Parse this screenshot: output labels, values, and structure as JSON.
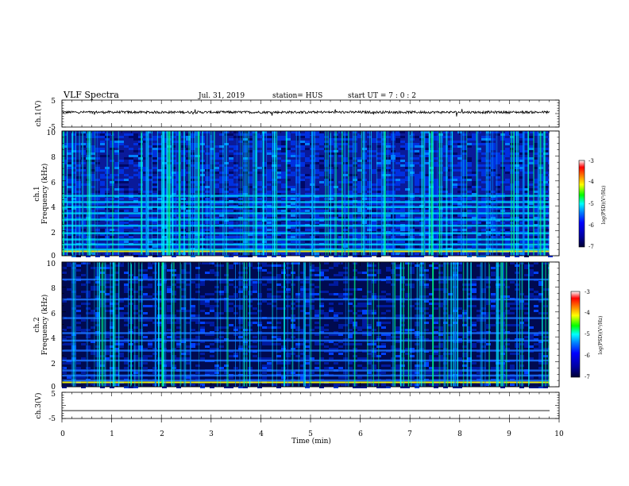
{
  "header": {
    "title": "VLF Spectra",
    "date": "Jul. 31, 2019",
    "station": "station= HUS",
    "start": "start  UT =   7 : 0  : 2"
  },
  "chart_data": [
    {
      "type": "line",
      "panel": "ch1-waveform",
      "ylabel": "ch.1(V)",
      "ylim": [
        -5,
        5
      ],
      "yticks": [
        "5",
        "-5"
      ],
      "xlim": [
        0,
        10
      ],
      "signal": "noisy waveform near 0 V, slightly above baseline"
    },
    {
      "type": "heatmap",
      "panel": "ch1-spectrogram",
      "ylabel_top": "ch.1",
      "ylabel": "Frequency (kHz)",
      "ylim": [
        0,
        10
      ],
      "yticks": [
        "0",
        "2",
        "4",
        "6",
        "8",
        "10"
      ],
      "xlim": [
        0,
        10
      ],
      "data_end_min": 9.8,
      "colorbar": {
        "title": "log(PSD)(V²/Hz)",
        "ticks": [
          "-3",
          "-4",
          "-5",
          "-6",
          "-7"
        ],
        "range": [
          -7,
          -3
        ]
      },
      "horizontal_bands_khz": [
        0.5,
        0.9,
        1.3,
        1.8,
        2.4,
        2.9,
        3.4,
        3.9,
        4.3,
        4.8
      ],
      "colors": [
        "#000033",
        "#00008b",
        "#0000ff",
        "#0080ff",
        "#00ffff",
        "#00ff00",
        "#ffff00",
        "#ff8000",
        "#ff0000",
        "#ffffff"
      ]
    },
    {
      "type": "heatmap",
      "panel": "ch2-spectrogram",
      "ylabel_top": "ch.2",
      "ylabel": "Frequency (kHz)",
      "ylim": [
        0,
        10
      ],
      "yticks": [
        "0",
        "2",
        "4",
        "6",
        "8",
        "10"
      ],
      "xlim": [
        0,
        10
      ],
      "data_end_min": 9.8,
      "colorbar": {
        "title": "log(PSD)(V²/Hz)",
        "ticks": [
          "-3",
          "-4",
          "-5",
          "-6",
          "-7"
        ],
        "range": [
          -7,
          -3
        ]
      },
      "horizontal_bands_khz": [
        0.5,
        0.9,
        1.3,
        2.1,
        2.9,
        3.7,
        4.3,
        5.5,
        7.0,
        8.6
      ],
      "colors": [
        "#000033",
        "#00008b",
        "#0000ff",
        "#0080ff",
        "#00ffff",
        "#00ff00",
        "#ffff00",
        "#ff8000",
        "#ff0000",
        "#ffffff"
      ]
    },
    {
      "type": "line",
      "panel": "ch3-waveform",
      "ylabel": "ch.3(V)",
      "ylim": [
        -5,
        5
      ],
      "yticks": [
        "5",
        "-5"
      ],
      "xlim": [
        0,
        10
      ],
      "signal": "flat line at about -2 V"
    }
  ],
  "xaxis": {
    "label": "Time (min)",
    "ticks": [
      "0",
      "1",
      "2",
      "3",
      "4",
      "5",
      "6",
      "7",
      "8",
      "9",
      "10"
    ]
  }
}
